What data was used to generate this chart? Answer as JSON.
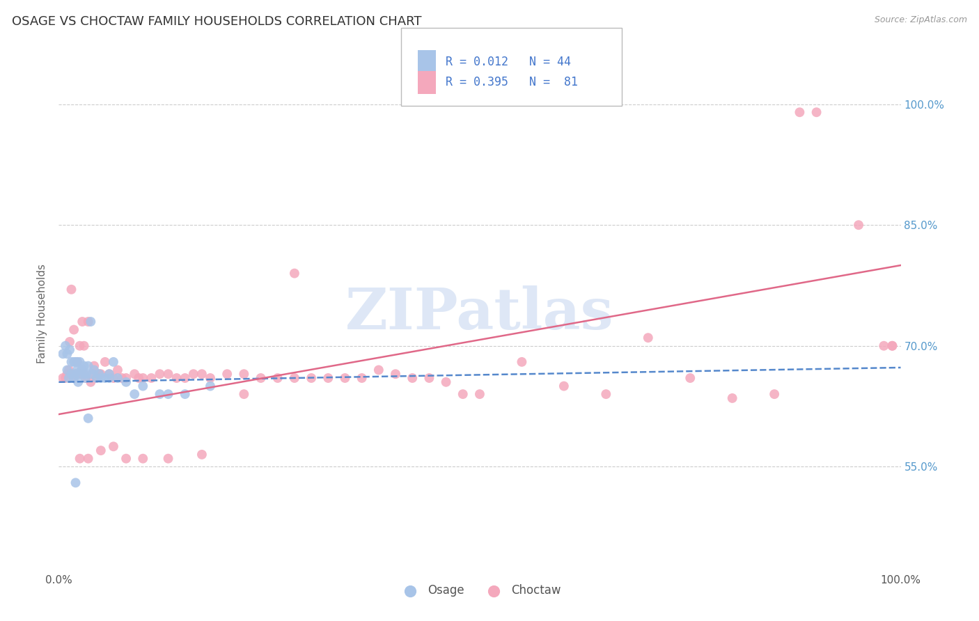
{
  "title": "OSAGE VS CHOCTAW FAMILY HOUSEHOLDS CORRELATION CHART",
  "source": "Source: ZipAtlas.com",
  "ylabel": "Family Households",
  "xlim": [
    0.0,
    1.0
  ],
  "ylim": [
    0.42,
    1.06
  ],
  "ytick_labels": [
    "55.0%",
    "70.0%",
    "85.0%",
    "100.0%"
  ],
  "ytick_vals": [
    0.55,
    0.7,
    0.85,
    1.0
  ],
  "xtick_labels": [
    "0.0%",
    "100.0%"
  ],
  "xtick_vals": [
    0.0,
    1.0
  ],
  "osage_color": "#a8c4e8",
  "choctaw_color": "#f4a8bc",
  "osage_line_color": "#5588cc",
  "choctaw_line_color": "#e06888",
  "right_tick_color": "#5599cc",
  "legend_text_color": "#4477cc",
  "watermark": "ZIPatlas",
  "legend_R_osage": "R = 0.012",
  "legend_N_osage": "N = 44",
  "legend_R_choctaw": "R = 0.395",
  "legend_N_choctaw": "N =  81",
  "osage_scatter_x": [
    0.005,
    0.008,
    0.01,
    0.01,
    0.012,
    0.013,
    0.015,
    0.015,
    0.018,
    0.018,
    0.02,
    0.02,
    0.022,
    0.022,
    0.023,
    0.025,
    0.025,
    0.027,
    0.028,
    0.03,
    0.03,
    0.032,
    0.033,
    0.035,
    0.038,
    0.04,
    0.042,
    0.045,
    0.048,
    0.05,
    0.055,
    0.06,
    0.065,
    0.07,
    0.08,
    0.09,
    0.1,
    0.12,
    0.13,
    0.15,
    0.18,
    0.02,
    0.035,
    0.06
  ],
  "osage_scatter_y": [
    0.69,
    0.7,
    0.67,
    0.69,
    0.66,
    0.695,
    0.665,
    0.68,
    0.66,
    0.68,
    0.665,
    0.68,
    0.67,
    0.68,
    0.655,
    0.665,
    0.68,
    0.67,
    0.67,
    0.665,
    0.675,
    0.66,
    0.665,
    0.675,
    0.73,
    0.665,
    0.67,
    0.66,
    0.665,
    0.66,
    0.66,
    0.665,
    0.68,
    0.66,
    0.655,
    0.64,
    0.65,
    0.64,
    0.64,
    0.64,
    0.65,
    0.53,
    0.61,
    0.66
  ],
  "choctaw_scatter_x": [
    0.005,
    0.008,
    0.01,
    0.012,
    0.013,
    0.015,
    0.018,
    0.018,
    0.02,
    0.022,
    0.025,
    0.025,
    0.027,
    0.028,
    0.03,
    0.03,
    0.032,
    0.035,
    0.038,
    0.04,
    0.042,
    0.045,
    0.048,
    0.05,
    0.055,
    0.06,
    0.065,
    0.07,
    0.075,
    0.08,
    0.09,
    0.095,
    0.1,
    0.11,
    0.12,
    0.13,
    0.14,
    0.15,
    0.16,
    0.17,
    0.18,
    0.2,
    0.22,
    0.24,
    0.26,
    0.28,
    0.3,
    0.32,
    0.34,
    0.36,
    0.38,
    0.4,
    0.42,
    0.44,
    0.46,
    0.48,
    0.5,
    0.55,
    0.6,
    0.65,
    0.7,
    0.75,
    0.8,
    0.85,
    0.88,
    0.9,
    0.95,
    0.98,
    0.99,
    0.99,
    0.015,
    0.025,
    0.035,
    0.05,
    0.065,
    0.08,
    0.1,
    0.13,
    0.17,
    0.22,
    0.28
  ],
  "choctaw_scatter_y": [
    0.66,
    0.66,
    0.665,
    0.67,
    0.705,
    0.665,
    0.66,
    0.72,
    0.665,
    0.68,
    0.665,
    0.7,
    0.665,
    0.73,
    0.665,
    0.7,
    0.66,
    0.73,
    0.655,
    0.665,
    0.675,
    0.66,
    0.665,
    0.665,
    0.68,
    0.665,
    0.66,
    0.67,
    0.66,
    0.66,
    0.665,
    0.66,
    0.66,
    0.66,
    0.665,
    0.665,
    0.66,
    0.66,
    0.665,
    0.665,
    0.66,
    0.665,
    0.665,
    0.66,
    0.66,
    0.66,
    0.66,
    0.66,
    0.66,
    0.66,
    0.67,
    0.665,
    0.66,
    0.66,
    0.655,
    0.64,
    0.64,
    0.68,
    0.65,
    0.64,
    0.71,
    0.66,
    0.635,
    0.64,
    0.99,
    0.99,
    0.85,
    0.7,
    0.7,
    0.7,
    0.77,
    0.56,
    0.56,
    0.57,
    0.575,
    0.56,
    0.56,
    0.56,
    0.565,
    0.64,
    0.79
  ]
}
